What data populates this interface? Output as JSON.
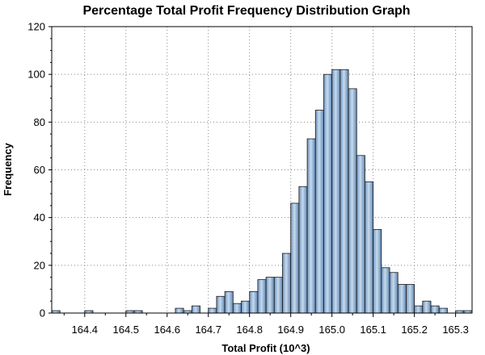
{
  "chart_data": {
    "type": "bar",
    "title": "Percentage Total Profit Frequency Distribution Graph",
    "xlabel": "Total Profit (10^3)",
    "ylabel": "Frequency",
    "xlim": [
      164.32,
      165.34
    ],
    "ylim": [
      0,
      120
    ],
    "yticks": [
      0,
      20,
      40,
      60,
      80,
      100,
      120
    ],
    "xticks": [
      "164.4",
      "164.5",
      "164.6",
      "164.7",
      "164.8",
      "164.9",
      "165.0",
      "165.1",
      "165.2",
      "165.3"
    ],
    "bin_width": 0.02,
    "grid": true,
    "bar_color": "#9cbcda",
    "bins": [
      {
        "x": 164.32,
        "count": 1
      },
      {
        "x": 164.4,
        "count": 1
      },
      {
        "x": 164.5,
        "count": 1
      },
      {
        "x": 164.52,
        "count": 1
      },
      {
        "x": 164.62,
        "count": 2
      },
      {
        "x": 164.64,
        "count": 1
      },
      {
        "x": 164.66,
        "count": 3
      },
      {
        "x": 164.7,
        "count": 2
      },
      {
        "x": 164.72,
        "count": 7
      },
      {
        "x": 164.74,
        "count": 9
      },
      {
        "x": 164.76,
        "count": 4
      },
      {
        "x": 164.78,
        "count": 5
      },
      {
        "x": 164.8,
        "count": 9
      },
      {
        "x": 164.82,
        "count": 14
      },
      {
        "x": 164.84,
        "count": 15
      },
      {
        "x": 164.86,
        "count": 15
      },
      {
        "x": 164.88,
        "count": 25
      },
      {
        "x": 164.9,
        "count": 46
      },
      {
        "x": 164.92,
        "count": 53
      },
      {
        "x": 164.94,
        "count": 73
      },
      {
        "x": 164.96,
        "count": 85
      },
      {
        "x": 164.98,
        "count": 100
      },
      {
        "x": 165.0,
        "count": 102
      },
      {
        "x": 165.02,
        "count": 102
      },
      {
        "x": 165.04,
        "count": 94
      },
      {
        "x": 165.06,
        "count": 66
      },
      {
        "x": 165.08,
        "count": 55
      },
      {
        "x": 165.1,
        "count": 35
      },
      {
        "x": 165.12,
        "count": 19
      },
      {
        "x": 165.14,
        "count": 17
      },
      {
        "x": 165.16,
        "count": 12
      },
      {
        "x": 165.18,
        "count": 12
      },
      {
        "x": 165.2,
        "count": 3
      },
      {
        "x": 165.22,
        "count": 5
      },
      {
        "x": 165.24,
        "count": 3
      },
      {
        "x": 165.26,
        "count": 2
      },
      {
        "x": 165.3,
        "count": 1
      },
      {
        "x": 165.32,
        "count": 1
      }
    ]
  }
}
